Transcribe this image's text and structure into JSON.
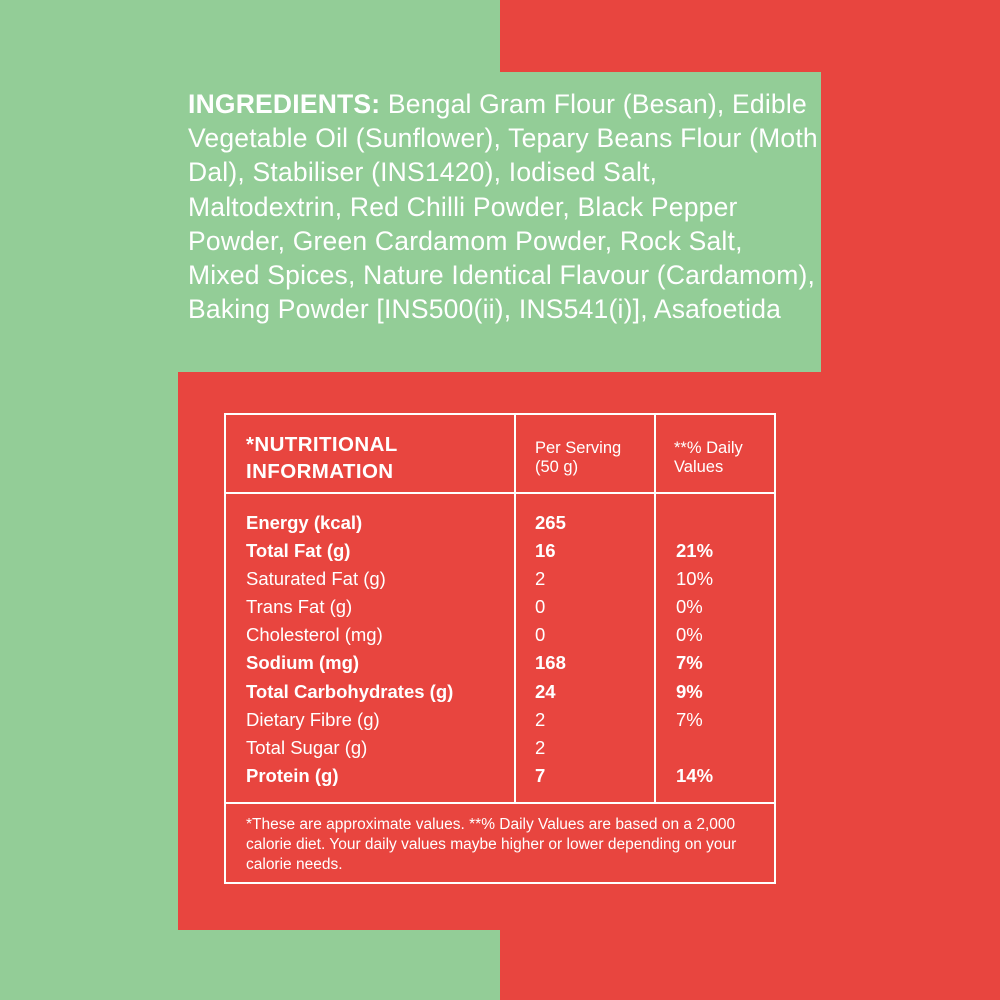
{
  "colors": {
    "green": "#93cd97",
    "red": "#e8453f",
    "text": "#ffffff"
  },
  "ingredients": {
    "label": "INGREDIENTS:",
    "text": " Bengal Gram Flour (Besan), Edible Vegetable Oil (Sunflower), Tepary Beans Flour (Moth Dal), Stabiliser (INS1420), Iodised Salt, Maltodextrin, Red Chilli Powder, Black Pepper Powder, Green Cardamom Powder, Rock Salt, Mixed Spices, Nature Identical Flavour (Cardamom), Baking Powder [INS500(ii), INS541(i)], Asafoetida"
  },
  "nutrition": {
    "title": "*NUTRITIONAL INFORMATION",
    "col_serving": "Per Serving (50 g)",
    "col_dv": "**% Daily Values",
    "rows": [
      {
        "name": "Energy (kcal)",
        "serving": "265",
        "dv": "",
        "bold": true
      },
      {
        "name": "Total Fat (g)",
        "serving": "16",
        "dv": "21%",
        "bold": true
      },
      {
        "name": "Saturated Fat (g)",
        "serving": "2",
        "dv": "10%",
        "bold": false
      },
      {
        "name": "Trans Fat (g)",
        "serving": "0",
        "dv": "0%",
        "bold": false
      },
      {
        "name": "Cholesterol (mg)",
        "serving": "0",
        "dv": "0%",
        "bold": false
      },
      {
        "name": "Sodium (mg)",
        "serving": "168",
        "dv": "7%",
        "bold": true
      },
      {
        "name": "Total Carbohydrates (g)",
        "serving": "24",
        "dv": "9%",
        "bold": true
      },
      {
        "name": "Dietary Fibre (g)",
        "serving": "2",
        "dv": "7%",
        "bold": false
      },
      {
        "name": "Total Sugar (g)",
        "serving": "2",
        "dv": "",
        "bold": false
      },
      {
        "name": "Protein (g)",
        "serving": "7",
        "dv": "14%",
        "bold": true
      }
    ],
    "footnote": "*These are approximate values. **% Daily Values are based on a 2,000 calorie diet. Your daily values maybe higher or lower depending on your calorie needs."
  }
}
